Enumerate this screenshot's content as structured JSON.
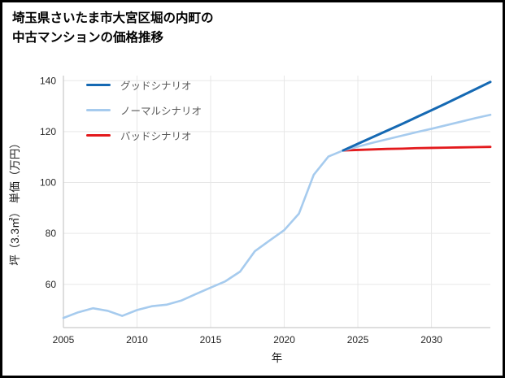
{
  "header": {
    "title_line1": "埼玉県さいたま市大宮区堀の内町の",
    "title_line2": "中古マンションの価格推移"
  },
  "chart_data": {
    "type": "line",
    "title": "埼玉県さいたま市大宮区堀の内町の中古マンションの価格推移",
    "xlabel": "年",
    "ylabel": "坪（3.3㎡） 単価（万円）",
    "xlim": [
      2005,
      2034
    ],
    "ylim": [
      43,
      142
    ],
    "xticks": [
      2005,
      2010,
      2015,
      2020,
      2025,
      2030
    ],
    "yticks": [
      60,
      80,
      100,
      120,
      140
    ],
    "grid": true,
    "legend_position": "top-left",
    "grid_color": "#e7e7e7",
    "spine_color": "#c9c9c9",
    "series": [
      {
        "name": "グッドシナリオ",
        "color": "#1569b3",
        "width": 3,
        "x": [
          2024,
          2025,
          2026,
          2027,
          2028,
          2029,
          2030,
          2031,
          2032,
          2033,
          2034
        ],
        "y": [
          112.6,
          115.2,
          117.8,
          120.4,
          123.0,
          125.7,
          128.4,
          131.1,
          133.9,
          136.7,
          139.5
        ]
      },
      {
        "name": "ノーマルシナリオ",
        "color": "#a6cbee",
        "width": 2.6,
        "x": [
          2005,
          2006,
          2007,
          2008,
          2009,
          2010,
          2011,
          2012,
          2013,
          2014,
          2015,
          2016,
          2017,
          2018,
          2019,
          2020,
          2021,
          2022,
          2023,
          2024,
          2025,
          2026,
          2027,
          2028,
          2029,
          2030,
          2031,
          2032,
          2033,
          2034
        ],
        "y": [
          46.8,
          49.0,
          50.6,
          49.6,
          47.6,
          49.9,
          51.4,
          52.0,
          53.6,
          56.2,
          58.7,
          61.2,
          65.0,
          73.0,
          77.2,
          81.3,
          87.8,
          103.0,
          110.2,
          112.6,
          114.1,
          115.6,
          117.0,
          118.4,
          119.8,
          121.1,
          122.5,
          123.9,
          125.3,
          126.6
        ]
      },
      {
        "name": "バッドシナリオ",
        "color": "#e3191c",
        "width": 2.8,
        "x": [
          2024,
          2025,
          2026,
          2027,
          2028,
          2029,
          2030,
          2031,
          2032,
          2033,
          2034
        ],
        "y": [
          112.6,
          112.8,
          113.0,
          113.2,
          113.3,
          113.5,
          113.6,
          113.7,
          113.8,
          113.9,
          114.0
        ]
      }
    ]
  }
}
